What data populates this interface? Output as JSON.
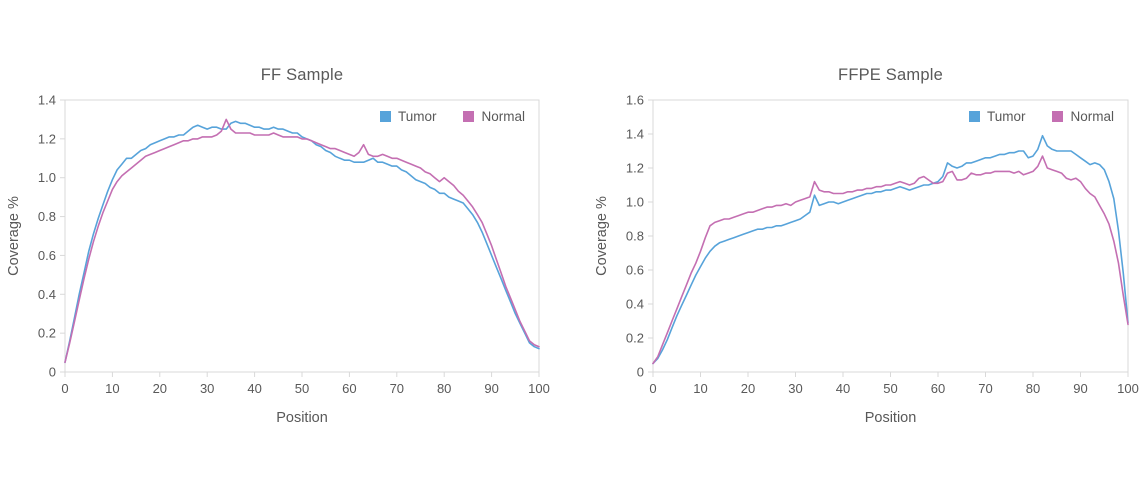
{
  "text_color": "#595959",
  "axis_line_color": "#d9d9d9",
  "background_color": "#ffffff",
  "chart_data": [
    {
      "type": "line",
      "title": "FF Sample",
      "xlabel": "Position",
      "ylabel": "Coverage %",
      "xlim": [
        0,
        100
      ],
      "ylim": [
        0,
        1.4
      ],
      "xticks": [
        0,
        10,
        20,
        30,
        40,
        50,
        60,
        70,
        80,
        90,
        100
      ],
      "yticks": [
        0,
        0.2,
        0.4,
        0.6,
        0.8,
        1.0,
        1.2,
        1.4
      ],
      "grid": false,
      "legend_position": "top-right-inside",
      "x": [
        0,
        1,
        2,
        3,
        4,
        5,
        6,
        7,
        8,
        9,
        10,
        11,
        12,
        13,
        14,
        15,
        16,
        17,
        18,
        19,
        20,
        21,
        22,
        23,
        24,
        25,
        26,
        27,
        28,
        29,
        30,
        31,
        32,
        33,
        34,
        35,
        36,
        37,
        38,
        39,
        40,
        41,
        42,
        43,
        44,
        45,
        46,
        47,
        48,
        49,
        50,
        51,
        52,
        53,
        54,
        55,
        56,
        57,
        58,
        59,
        60,
        61,
        62,
        63,
        64,
        65,
        66,
        67,
        68,
        69,
        70,
        71,
        72,
        73,
        74,
        75,
        76,
        77,
        78,
        79,
        80,
        81,
        82,
        83,
        84,
        85,
        86,
        87,
        88,
        89,
        90,
        91,
        92,
        93,
        94,
        95,
        96,
        97,
        98,
        99,
        100
      ],
      "series": [
        {
          "name": "Tumor",
          "color": "#57a3da",
          "y": [
            0.05,
            0.16,
            0.28,
            0.4,
            0.51,
            0.62,
            0.71,
            0.79,
            0.86,
            0.93,
            0.99,
            1.04,
            1.07,
            1.1,
            1.1,
            1.12,
            1.14,
            1.15,
            1.17,
            1.18,
            1.19,
            1.2,
            1.21,
            1.21,
            1.22,
            1.22,
            1.24,
            1.26,
            1.27,
            1.26,
            1.25,
            1.26,
            1.26,
            1.25,
            1.25,
            1.28,
            1.29,
            1.28,
            1.28,
            1.27,
            1.26,
            1.26,
            1.25,
            1.25,
            1.26,
            1.25,
            1.25,
            1.24,
            1.23,
            1.23,
            1.21,
            1.2,
            1.19,
            1.17,
            1.16,
            1.14,
            1.13,
            1.11,
            1.1,
            1.09,
            1.09,
            1.08,
            1.08,
            1.08,
            1.09,
            1.1,
            1.08,
            1.08,
            1.07,
            1.06,
            1.06,
            1.04,
            1.03,
            1.01,
            0.99,
            0.98,
            0.97,
            0.95,
            0.94,
            0.92,
            0.92,
            0.9,
            0.89,
            0.88,
            0.87,
            0.84,
            0.81,
            0.77,
            0.72,
            0.66,
            0.6,
            0.54,
            0.48,
            0.42,
            0.36,
            0.3,
            0.25,
            0.2,
            0.15,
            0.13,
            0.12
          ]
        },
        {
          "name": "Normal",
          "color": "#c46fb2",
          "y": [
            0.05,
            0.15,
            0.26,
            0.37,
            0.48,
            0.58,
            0.67,
            0.75,
            0.82,
            0.88,
            0.94,
            0.98,
            1.01,
            1.03,
            1.05,
            1.07,
            1.09,
            1.11,
            1.12,
            1.13,
            1.14,
            1.15,
            1.16,
            1.17,
            1.18,
            1.19,
            1.19,
            1.2,
            1.2,
            1.21,
            1.21,
            1.21,
            1.22,
            1.24,
            1.3,
            1.25,
            1.23,
            1.23,
            1.23,
            1.23,
            1.22,
            1.22,
            1.22,
            1.22,
            1.23,
            1.22,
            1.21,
            1.21,
            1.21,
            1.21,
            1.2,
            1.2,
            1.19,
            1.18,
            1.17,
            1.16,
            1.15,
            1.15,
            1.14,
            1.13,
            1.12,
            1.11,
            1.13,
            1.17,
            1.12,
            1.11,
            1.11,
            1.12,
            1.11,
            1.1,
            1.1,
            1.09,
            1.08,
            1.07,
            1.06,
            1.05,
            1.03,
            1.02,
            1.0,
            0.98,
            1.0,
            0.98,
            0.96,
            0.93,
            0.91,
            0.88,
            0.85,
            0.81,
            0.77,
            0.71,
            0.65,
            0.58,
            0.51,
            0.44,
            0.38,
            0.32,
            0.26,
            0.21,
            0.16,
            0.14,
            0.13
          ]
        }
      ]
    },
    {
      "type": "line",
      "title": "FFPE Sample",
      "xlabel": "Position",
      "ylabel": "Coverage %",
      "xlim": [
        0,
        100
      ],
      "ylim": [
        0,
        1.6
      ],
      "xticks": [
        0,
        10,
        20,
        30,
        40,
        50,
        60,
        70,
        80,
        90,
        100
      ],
      "yticks": [
        0,
        0.2,
        0.4,
        0.6,
        0.8,
        1.0,
        1.2,
        1.4,
        1.6
      ],
      "grid": false,
      "legend_position": "top-right-inside",
      "x": [
        0,
        1,
        2,
        3,
        4,
        5,
        6,
        7,
        8,
        9,
        10,
        11,
        12,
        13,
        14,
        15,
        16,
        17,
        18,
        19,
        20,
        21,
        22,
        23,
        24,
        25,
        26,
        27,
        28,
        29,
        30,
        31,
        32,
        33,
        34,
        35,
        36,
        37,
        38,
        39,
        40,
        41,
        42,
        43,
        44,
        45,
        46,
        47,
        48,
        49,
        50,
        51,
        52,
        53,
        54,
        55,
        56,
        57,
        58,
        59,
        60,
        61,
        62,
        63,
        64,
        65,
        66,
        67,
        68,
        69,
        70,
        71,
        72,
        73,
        74,
        75,
        76,
        77,
        78,
        79,
        80,
        81,
        82,
        83,
        84,
        85,
        86,
        87,
        88,
        89,
        90,
        91,
        92,
        93,
        94,
        95,
        96,
        97,
        98,
        99,
        100
      ],
      "series": [
        {
          "name": "Tumor",
          "color": "#57a3da",
          "y": [
            0.05,
            0.08,
            0.13,
            0.19,
            0.26,
            0.33,
            0.39,
            0.45,
            0.51,
            0.57,
            0.62,
            0.67,
            0.71,
            0.74,
            0.76,
            0.77,
            0.78,
            0.79,
            0.8,
            0.81,
            0.82,
            0.83,
            0.84,
            0.84,
            0.85,
            0.85,
            0.86,
            0.86,
            0.87,
            0.88,
            0.89,
            0.9,
            0.92,
            0.94,
            1.04,
            0.98,
            0.99,
            1.0,
            1.0,
            0.99,
            1.0,
            1.01,
            1.02,
            1.03,
            1.04,
            1.05,
            1.05,
            1.06,
            1.06,
            1.07,
            1.07,
            1.08,
            1.09,
            1.08,
            1.07,
            1.08,
            1.09,
            1.1,
            1.1,
            1.11,
            1.12,
            1.15,
            1.23,
            1.21,
            1.2,
            1.21,
            1.23,
            1.23,
            1.24,
            1.25,
            1.26,
            1.26,
            1.27,
            1.28,
            1.28,
            1.29,
            1.29,
            1.3,
            1.3,
            1.26,
            1.27,
            1.31,
            1.39,
            1.33,
            1.31,
            1.3,
            1.3,
            1.3,
            1.3,
            1.28,
            1.26,
            1.24,
            1.22,
            1.23,
            1.22,
            1.19,
            1.12,
            1.02,
            0.83,
            0.58,
            0.29
          ]
        },
        {
          "name": "Normal",
          "color": "#c46fb2",
          "y": [
            0.05,
            0.09,
            0.16,
            0.23,
            0.3,
            0.37,
            0.44,
            0.51,
            0.58,
            0.64,
            0.71,
            0.79,
            0.86,
            0.88,
            0.89,
            0.9,
            0.9,
            0.91,
            0.92,
            0.93,
            0.94,
            0.94,
            0.95,
            0.96,
            0.97,
            0.97,
            0.98,
            0.98,
            0.99,
            0.98,
            1.0,
            1.01,
            1.02,
            1.03,
            1.12,
            1.07,
            1.06,
            1.06,
            1.05,
            1.05,
            1.05,
            1.06,
            1.06,
            1.07,
            1.07,
            1.08,
            1.08,
            1.09,
            1.09,
            1.1,
            1.1,
            1.11,
            1.12,
            1.11,
            1.1,
            1.11,
            1.14,
            1.15,
            1.13,
            1.11,
            1.11,
            1.12,
            1.17,
            1.18,
            1.13,
            1.13,
            1.14,
            1.17,
            1.16,
            1.16,
            1.17,
            1.17,
            1.18,
            1.18,
            1.18,
            1.18,
            1.17,
            1.18,
            1.16,
            1.17,
            1.18,
            1.21,
            1.27,
            1.2,
            1.19,
            1.18,
            1.17,
            1.14,
            1.13,
            1.14,
            1.12,
            1.08,
            1.05,
            1.03,
            0.98,
            0.93,
            0.87,
            0.77,
            0.64,
            0.45,
            0.28
          ]
        }
      ]
    }
  ]
}
